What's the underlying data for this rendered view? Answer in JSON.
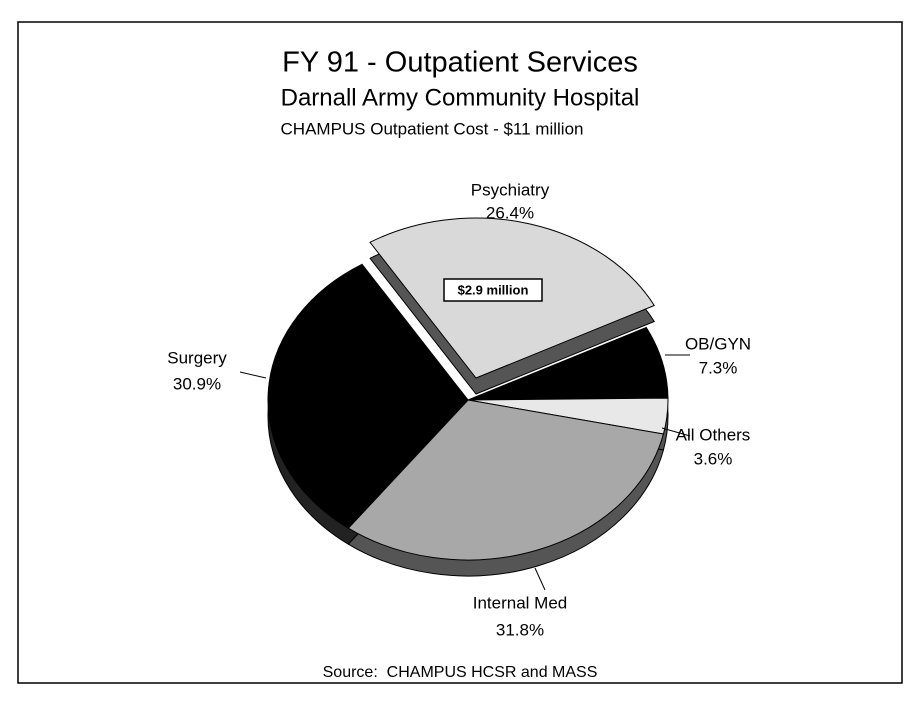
{
  "chart_data": {
    "type": "pie",
    "title": "FY 91 - Outpatient Services",
    "subtitle": [
      "Darnall Army Community Hospital",
      "CHAMPUS Outpatient Cost - $11 million"
    ],
    "categories": [
      "Psychiatry",
      "OB/GYN",
      "All Others",
      "Internal Med",
      "Surgery"
    ],
    "values": [
      26.4,
      7.3,
      3.6,
      31.8,
      30.9
    ],
    "value_labels": [
      "26.4%",
      "7.3%",
      "3.6%",
      "31.8%",
      "30.9%"
    ],
    "colors": [
      "#d9d9d9",
      "#000000",
      "#e8e8e8",
      "#a8a8a8",
      "#000000"
    ],
    "annotations": [
      "$2.9 million"
    ],
    "source": "Source:  CHAMPUS HCSR and MASS"
  }
}
